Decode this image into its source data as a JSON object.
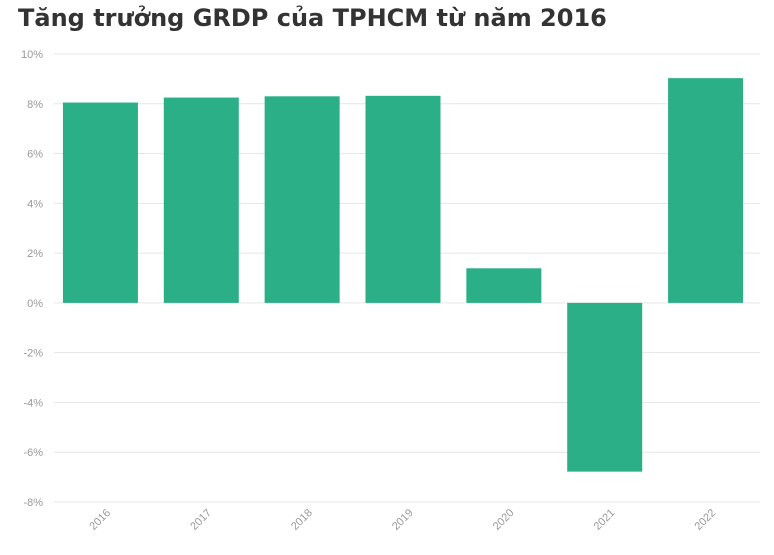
{
  "chart_data": {
    "type": "bar",
    "title": "Tăng trưởng GRDP của TPHCM từ năm 2016",
    "xlabel": "",
    "ylabel": "",
    "categories": [
      "2016",
      "2017",
      "2018",
      "2019",
      "2020",
      "2021",
      "2022"
    ],
    "values": [
      8.05,
      8.25,
      8.3,
      8.32,
      1.39,
      -6.78,
      9.03
    ],
    "ylim": [
      -8,
      10
    ],
    "yticks": [
      "10%",
      "8%",
      "6%",
      "4%",
      "2%",
      "0%",
      "-2%",
      "-4%",
      "-6%",
      "-8%"
    ],
    "grid": true,
    "bar_color": "#2baf86",
    "grid_color": "#e6e6e6",
    "tick_color": "#999999"
  }
}
